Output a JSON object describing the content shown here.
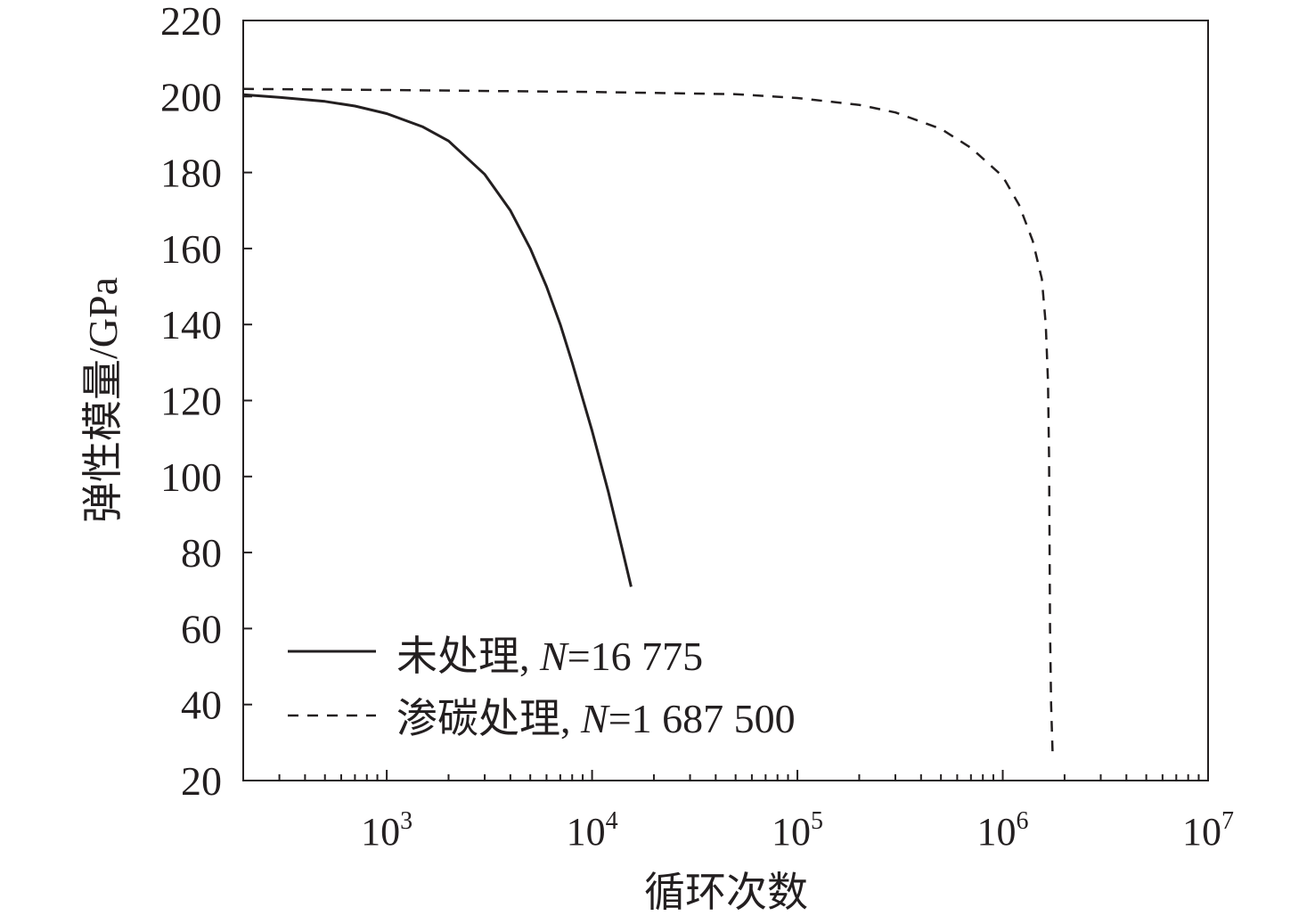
{
  "chart_data": {
    "type": "line",
    "title": "",
    "xlabel": "循环次数",
    "ylabel": "弹性模量/GPa",
    "x_scale": "log",
    "xlim": [
      200,
      10000000
    ],
    "ylim": [
      20,
      220
    ],
    "grid": false,
    "y_ticks": [
      20,
      40,
      60,
      80,
      100,
      120,
      140,
      160,
      180,
      200,
      220
    ],
    "y_tick_labels": [
      "20",
      "40",
      "60",
      "80",
      "100",
      "120",
      "140",
      "160",
      "180",
      "200",
      "220"
    ],
    "x_ticks": [
      {
        "value": 1000,
        "base": "10",
        "exp": "3"
      },
      {
        "value": 10000,
        "base": "10",
        "exp": "4"
      },
      {
        "value": 100000,
        "base": "10",
        "exp": "5"
      },
      {
        "value": 1000000,
        "base": "10",
        "exp": "6"
      },
      {
        "value": 10000000,
        "base": "10",
        "exp": "7"
      }
    ],
    "legend_position": "bottom-left",
    "series": [
      {
        "label_prefix": "未处理, ",
        "label_var": "N",
        "label_suffix": "=16 775",
        "style": "solid",
        "color": "#231f20",
        "x": [
          200,
          300,
          500,
          700,
          1000,
          1500,
          2000,
          3000,
          4000,
          5000,
          6000,
          7000,
          8000,
          10000,
          12000,
          14000,
          15500
        ],
        "y": [
          200.5,
          199.8,
          198.7,
          197.5,
          195.5,
          192,
          188.3,
          179.5,
          170,
          160,
          150,
          140,
          130,
          112,
          96,
          81,
          71
        ]
      },
      {
        "label_prefix": "渗碳处理, ",
        "label_var": "N",
        "label_suffix": "=1 687 500",
        "style": "dashed",
        "color": "#231f20",
        "x": [
          200,
          1000,
          10000,
          50000,
          100000,
          200000,
          300000,
          500000,
          700000,
          1000000,
          1200000,
          1400000,
          1550000,
          1620000,
          1660000,
          1680000,
          1690000,
          1700000,
          1720000,
          1750000
        ],
        "y": [
          202,
          201.7,
          201.2,
          200.6,
          199.6,
          197.8,
          195.8,
          191.5,
          186.5,
          179,
          171.5,
          162,
          152,
          140,
          125,
          105,
          85,
          60,
          40,
          27
        ]
      }
    ]
  }
}
